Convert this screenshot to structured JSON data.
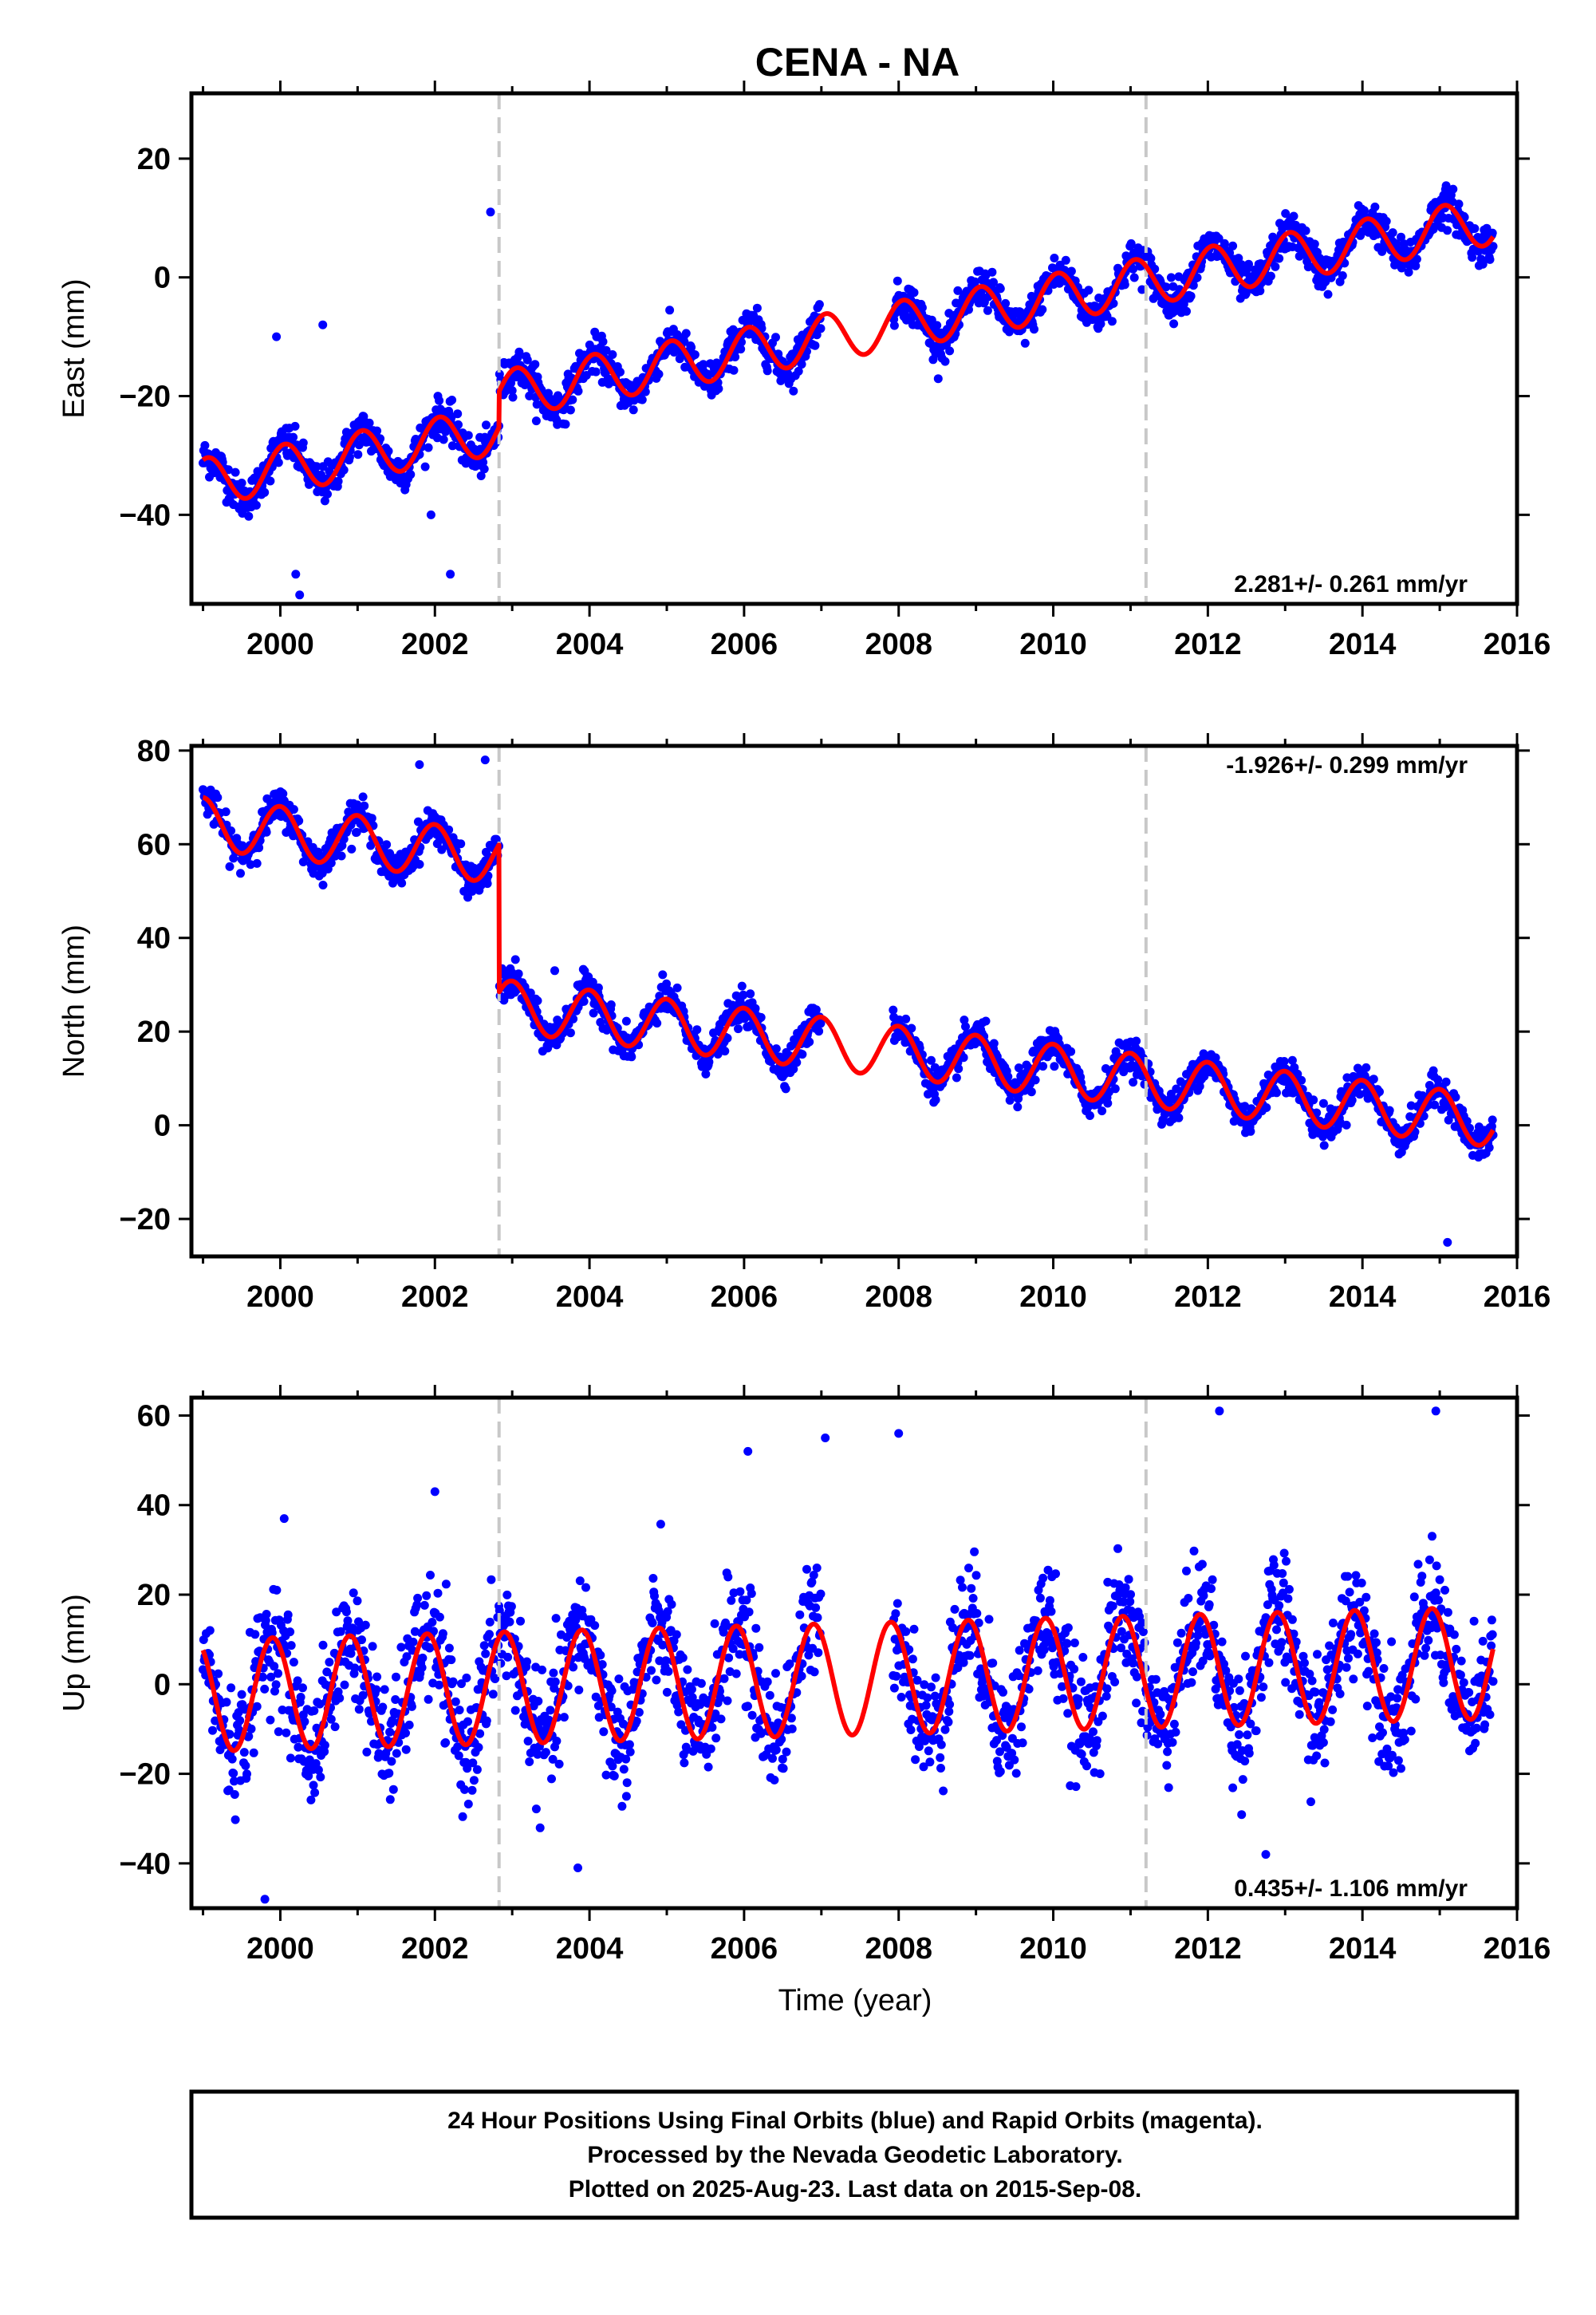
{
  "title": "CENA - NA",
  "xlabel": "Time (year)",
  "caption": [
    "24 Hour Positions Using Final Orbits (blue) and Rapid Orbits (magenta).",
    "Processed by the Nevada Geodetic Laboratory.",
    "Plotted on 2025-Aug-23. Last data on 2015-Sep-08."
  ],
  "colors": {
    "points": "#0000ff",
    "fit": "#ff0000",
    "break_lines": "#c8c8c8"
  },
  "chart_data": [
    {
      "type": "scatter",
      "ylabel": "East (mm)",
      "xlim": [
        1998.85,
        2016.0
      ],
      "ylim": [
        -55,
        31
      ],
      "xticks": [
        2000,
        2002,
        2004,
        2006,
        2008,
        2010,
        2012,
        2014,
        2016
      ],
      "yticks": [
        -40,
        -20,
        0,
        20
      ],
      "break_lines": [
        2002.83,
        2011.2
      ],
      "rate": "2.281+/- 0.261 mm/yr",
      "rate_position": "bottom-right",
      "model": {
        "t0": 1999.0,
        "offset": -34.5,
        "rate": 2.281,
        "seasonal_amp": 4.0,
        "seasonal_phase": 1.2,
        "steps": [
          {
            "t": 2002.83,
            "value": 6.0
          }
        ]
      },
      "data_range": [
        1999.0,
        2015.69
      ],
      "data_gap": [
        2007.0,
        2007.92
      ],
      "scatter_sd": 1.6,
      "outliers": [
        [
          1999.95,
          -10
        ],
        [
          2000.55,
          -8
        ],
        [
          2002.72,
          11
        ],
        [
          2000.2,
          -50
        ],
        [
          2000.25,
          -53.5
        ],
        [
          2002.2,
          -50
        ],
        [
          2001.95,
          -40
        ]
      ]
    },
    {
      "type": "scatter",
      "ylabel": "North (mm)",
      "xlim": [
        1998.85,
        2016.0
      ],
      "ylim": [
        -28,
        81
      ],
      "xticks": [
        2000,
        2002,
        2004,
        2006,
        2008,
        2010,
        2012,
        2014,
        2016
      ],
      "yticks": [
        -20,
        0,
        20,
        40,
        60,
        80
      ],
      "break_lines": [
        2002.83,
        2011.2
      ],
      "rate": "-1.926+/- 0.299 mm/yr",
      "rate_position": "top-right",
      "model": {
        "t0": 1999.0,
        "offset": 64.5,
        "rate": -1.926,
        "seasonal_amp": 5.5,
        "seasonal_phase": 1.6,
        "steps": [
          {
            "t": 2002.83,
            "value": -31.5
          }
        ]
      },
      "data_range": [
        1999.0,
        2015.69
      ],
      "data_gap": [
        2007.0,
        2007.92
      ],
      "scatter_sd": 1.8,
      "outliers": [
        [
          2001.8,
          77
        ],
        [
          2002.65,
          78
        ],
        [
          2003.55,
          33
        ],
        [
          2015.1,
          -25
        ]
      ]
    },
    {
      "type": "scatter",
      "ylabel": "Up (mm)",
      "xlim": [
        1998.85,
        2016.0
      ],
      "ylim": [
        -50,
        64
      ],
      "xticks": [
        2000,
        2002,
        2004,
        2006,
        2008,
        2010,
        2012,
        2014,
        2016
      ],
      "yticks": [
        -40,
        -20,
        0,
        20,
        40,
        60
      ],
      "break_lines": [
        2002.83,
        2011.2
      ],
      "rate": "0.435+/- 1.106 mm/yr",
      "rate_position": "bottom-right",
      "model": {
        "t0": 1999.0,
        "offset": -2.5,
        "rate": 0.435,
        "seasonal_amp": 12.5,
        "seasonal_phase": 2.2,
        "steps": []
      },
      "data_range": [
        1999.0,
        2015.69
      ],
      "data_gap": [
        2007.0,
        2007.92
      ],
      "scatter_sd": 6.5,
      "outliers": [
        [
          2002.0,
          43
        ],
        [
          2000.05,
          37
        ],
        [
          2006.05,
          52
        ],
        [
          2007.05,
          55
        ],
        [
          2008.0,
          56
        ],
        [
          2012.15,
          61
        ],
        [
          2014.95,
          61
        ],
        [
          1999.8,
          -48
        ],
        [
          2003.85,
          -41
        ],
        [
          2012.75,
          -38
        ]
      ]
    }
  ]
}
